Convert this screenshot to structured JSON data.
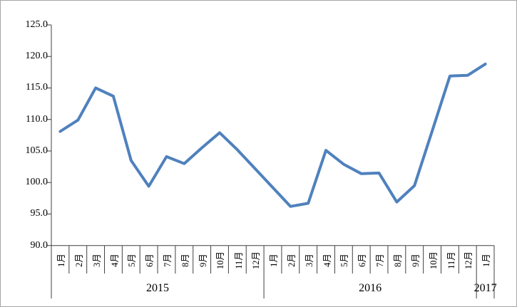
{
  "chart_data": {
    "type": "line",
    "categories": [
      "1月",
      "2月",
      "3月",
      "4月",
      "5月",
      "6月",
      "7月",
      "8月",
      "9月",
      "10月",
      "11月",
      "12月",
      "1月",
      "2月",
      "3月",
      "4月",
      "5月",
      "6月",
      "7月",
      "8月",
      "9月",
      "10月",
      "11月",
      "12月",
      "1月"
    ],
    "values": [
      108.1,
      109.9,
      115.0,
      113.7,
      103.5,
      99.4,
      104.1,
      103.0,
      105.5,
      107.9,
      105.2,
      102.2,
      99.2,
      96.2,
      96.7,
      105.1,
      102.9,
      101.4,
      101.5,
      96.9,
      99.5,
      108.2,
      116.9,
      117.0,
      118.8
    ],
    "year_groups": [
      {
        "label": "2015",
        "span": 12
      },
      {
        "label": "2016",
        "span": 12
      },
      {
        "label": "2017",
        "span": 1
      }
    ],
    "y_ticks": [
      "125.0",
      "120.0",
      "115.0",
      "110.0",
      "105.0",
      "100.0",
      "95.0",
      "90.0"
    ],
    "ylim": [
      90,
      125
    ],
    "grid": false,
    "legend": "none",
    "line_color": "#4f81bd",
    "axis_color": "#404040",
    "frame_border_color": "#a6a6a6"
  }
}
